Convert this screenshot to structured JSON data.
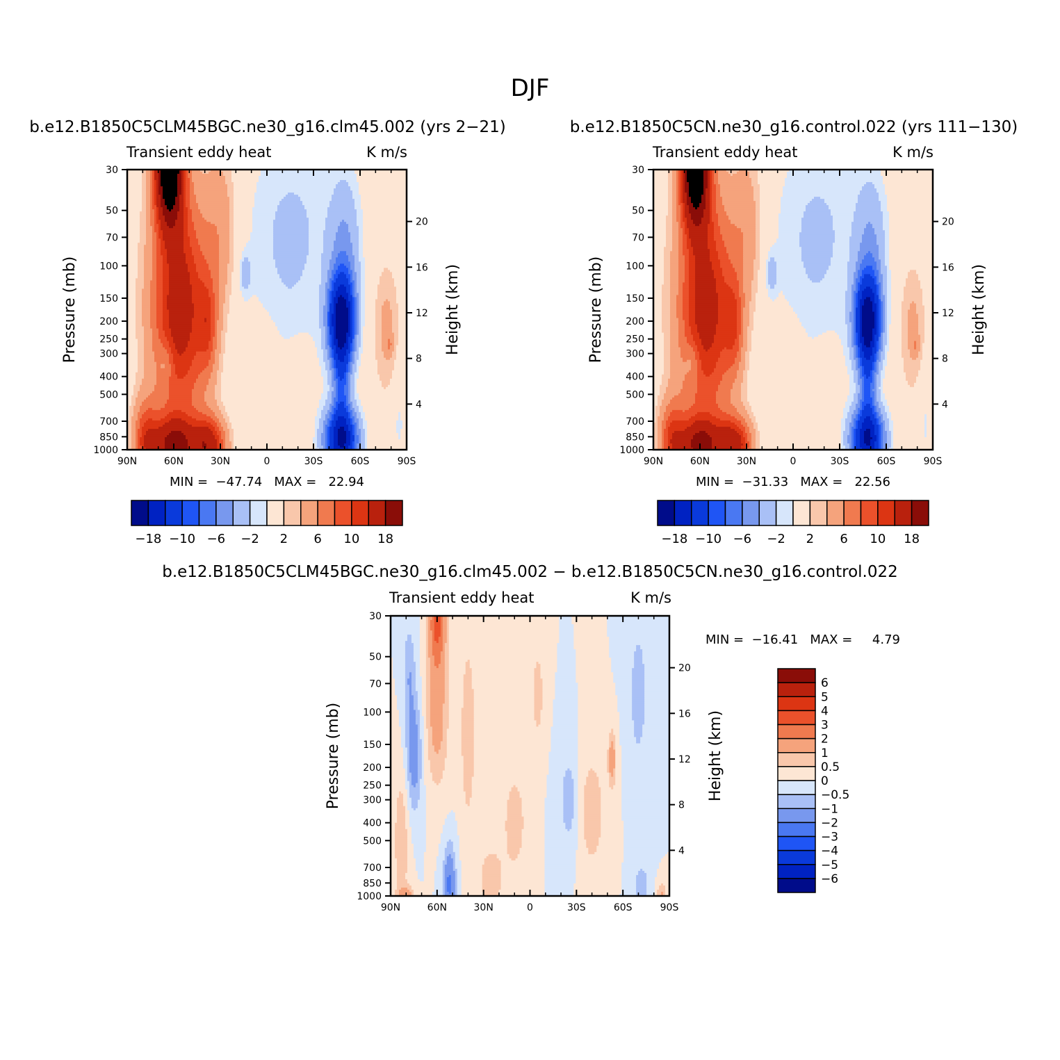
{
  "figure": {
    "title": "DJF"
  },
  "colors": {
    "cmap": [
      "#000c8a",
      "#0022c2",
      "#0a3adb",
      "#1f55f5",
      "#4a78f2",
      "#7898ee",
      "#a9c0f6",
      "#d7e6fb",
      "#fde6d4",
      "#f9c7ab",
      "#f5a37c",
      "#f07a4f",
      "#eb512b",
      "#dc3513",
      "#b9210d",
      "#8a0d08"
    ]
  },
  "panels": [
    {
      "id": "left",
      "case_title": "b.e12.B1850C5CLM45BGC.ne30_g16.clm45.002 (yrs 2−21)",
      "left_string": "Transient eddy heat",
      "right_string": "K m/s",
      "ylabel": "Pressure (mb)",
      "y2label": "Height (km)",
      "x_ticks": [
        "90N",
        "60N",
        "30N",
        "0",
        "30S",
        "60S",
        "90S"
      ],
      "y_ticks": [
        "30",
        "50",
        "70",
        "100",
        "150",
        "200",
        "250",
        "300",
        "400",
        "500",
        "700",
        "850",
        "1000"
      ],
      "y2_ticks": [
        "20",
        "16",
        "12",
        "8",
        "4"
      ],
      "stats": "MIN =  −47.74   MAX =   22.94",
      "colorbar_labels": [
        "−18",
        "−10",
        "−6",
        "−2",
        "2",
        "6",
        "10",
        "18"
      ]
    },
    {
      "id": "right",
      "case_title": "b.e12.B1850C5CN.ne30_g16.control.022 (yrs 111−130)",
      "left_string": "Transient eddy heat",
      "right_string": "K m/s",
      "ylabel": "Pressure (mb)",
      "y2label": "Height (km)",
      "x_ticks": [
        "90N",
        "60N",
        "30N",
        "0",
        "30S",
        "60S",
        "90S"
      ],
      "y_ticks": [
        "30",
        "50",
        "70",
        "100",
        "150",
        "200",
        "250",
        "300",
        "400",
        "500",
        "700",
        "850",
        "1000"
      ],
      "y2_ticks": [
        "20",
        "16",
        "12",
        "8",
        "4"
      ],
      "stats": "MIN =  −31.33   MAX =   22.56",
      "colorbar_labels": [
        "−18",
        "−10",
        "−6",
        "−2",
        "2",
        "6",
        "10",
        "18"
      ]
    },
    {
      "id": "diff",
      "case_title": "b.e12.B1850C5CLM45BGC.ne30_g16.clm45.002 − b.e12.B1850C5CN.ne30_g16.control.022",
      "left_string": "Transient eddy heat",
      "right_string": "K m/s",
      "ylabel": "Pressure (mb)",
      "y2label": "Height (km)",
      "x_ticks": [
        "90N",
        "60N",
        "30N",
        "0",
        "30S",
        "60S",
        "90S"
      ],
      "y_ticks": [
        "30",
        "50",
        "70",
        "100",
        "150",
        "200",
        "250",
        "300",
        "400",
        "500",
        "700",
        "850",
        "1000"
      ],
      "y2_ticks": [
        "20",
        "16",
        "12",
        "8",
        "4"
      ],
      "stats": "MIN =  −16.41   MAX =     4.79",
      "colorbar_labels": [
        "6",
        "5",
        "4",
        "3",
        "2",
        "1",
        "0.5",
        "0",
        "−0.5",
        "−1",
        "−2",
        "−3",
        "−4",
        "−5",
        "−6"
      ]
    }
  ],
  "chart_data": [
    {
      "type": "heatmap",
      "title": "b.e12.B1850C5CLM45BGC.ne30_g16.clm45.002 (yrs 2−21)",
      "xlabel": "",
      "ylabel": "Pressure (mb)",
      "y2label": "Height (km)",
      "x": [
        "90N",
        "60N",
        "30N",
        "0",
        "30S",
        "60S",
        "90S"
      ],
      "y": [
        30,
        50,
        70,
        100,
        150,
        200,
        250,
        300,
        400,
        500,
        700,
        850,
        1000
      ],
      "y_scale": "log",
      "units": "K m/s",
      "contour_levels": [
        -18,
        -14,
        -10,
        -8,
        -6,
        -4,
        -2,
        -1,
        1,
        2,
        4,
        6,
        8,
        10,
        14,
        18
      ],
      "min": -47.74,
      "max": 22.94,
      "features": [
        {
          "lat": 62,
          "p": 30,
          "value": 22
        },
        {
          "lat": 55,
          "p": 200,
          "value": 12
        },
        {
          "lat": 60,
          "p": 900,
          "value": 20
        },
        {
          "lat": 40,
          "p": 900,
          "value": 20
        },
        {
          "lat": -48,
          "p": 200,
          "value": -20
        },
        {
          "lat": -48,
          "p": 870,
          "value": -20
        },
        {
          "lat": 15,
          "p": 110,
          "value": -3
        },
        {
          "lat": -75,
          "p": 250,
          "value": 1.5
        }
      ]
    },
    {
      "type": "heatmap",
      "title": "b.e12.B1850C5CN.ne30_g16.control.022 (yrs 111−130)",
      "xlabel": "",
      "ylabel": "Pressure (mb)",
      "y2label": "Height (km)",
      "x": [
        "90N",
        "60N",
        "30N",
        "0",
        "30S",
        "60S",
        "90S"
      ],
      "y": [
        30,
        50,
        70,
        100,
        150,
        200,
        250,
        300,
        400,
        500,
        700,
        850,
        1000
      ],
      "y_scale": "log",
      "units": "K m/s",
      "contour_levels": [
        -18,
        -14,
        -10,
        -8,
        -6,
        -4,
        -2,
        -1,
        1,
        2,
        4,
        6,
        8,
        10,
        14,
        18
      ],
      "min": -31.33,
      "max": 22.56,
      "features": [
        {
          "lat": 62,
          "p": 30,
          "value": 22
        },
        {
          "lat": 55,
          "p": 200,
          "value": 12
        },
        {
          "lat": 60,
          "p": 900,
          "value": 20
        },
        {
          "lat": 40,
          "p": 900,
          "value": 20
        },
        {
          "lat": -48,
          "p": 200,
          "value": -20
        },
        {
          "lat": -48,
          "p": 870,
          "value": -20
        },
        {
          "lat": 15,
          "p": 110,
          "value": -3
        },
        {
          "lat": -75,
          "p": 250,
          "value": 1.5
        }
      ]
    },
    {
      "type": "heatmap",
      "title": "b.e12.B1850C5CLM45BGC.ne30_g16.clm45.002 − b.e12.B1850C5CN.ne30_g16.control.022",
      "xlabel": "",
      "ylabel": "Pressure (mb)",
      "y2label": "Height (km)",
      "x": [
        "90N",
        "60N",
        "30N",
        "0",
        "30S",
        "60S",
        "90S"
      ],
      "y": [
        30,
        50,
        70,
        100,
        150,
        200,
        250,
        300,
        400,
        500,
        700,
        850,
        1000
      ],
      "y_scale": "log",
      "units": "K m/s",
      "contour_levels": [
        -6,
        -5,
        -4,
        -3,
        -2,
        -1,
        -0.5,
        0,
        0.5,
        1,
        2,
        3,
        4,
        5,
        6
      ],
      "min": -16.41,
      "max": 4.79,
      "features": [
        {
          "lat": 60,
          "p": 35,
          "value": 3
        },
        {
          "lat": 74,
          "p": 180,
          "value": -1.5
        },
        {
          "lat": 50,
          "p": 920,
          "value": -1.5
        },
        {
          "lat": -55,
          "p": 180,
          "value": 1.5
        }
      ]
    }
  ]
}
